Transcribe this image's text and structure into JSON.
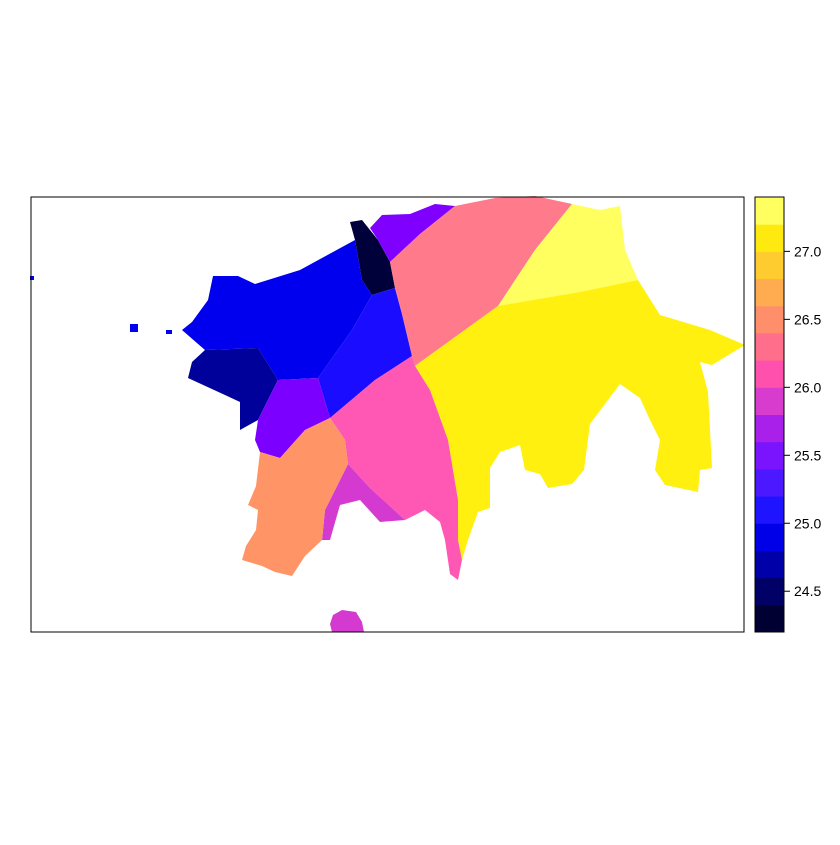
{
  "map": {
    "legend": {
      "min": 24.2,
      "max": 27.4,
      "bins": [
        {
          "from": 24.2,
          "to": 24.4,
          "color": "#000033"
        },
        {
          "from": 24.4,
          "to": 24.6,
          "color": "#000066"
        },
        {
          "from": 24.6,
          "to": 24.8,
          "color": "#0000a8"
        },
        {
          "from": 24.8,
          "to": 25.0,
          "color": "#0000e8"
        },
        {
          "from": 25.0,
          "to": 25.2,
          "color": "#1e14ff"
        },
        {
          "from": 25.2,
          "to": 25.4,
          "color": "#4c18ff"
        },
        {
          "from": 25.4,
          "to": 25.6,
          "color": "#7a14ff"
        },
        {
          "from": 25.6,
          "to": 25.8,
          "color": "#a820ea"
        },
        {
          "from": 25.8,
          "to": 26.0,
          "color": "#d83ccf"
        },
        {
          "from": 26.0,
          "to": 26.2,
          "color": "#ff50ad"
        },
        {
          "from": 26.2,
          "to": 26.4,
          "color": "#ff6e8a"
        },
        {
          "from": 26.4,
          "to": 26.6,
          "color": "#ff8e6a"
        },
        {
          "from": 26.6,
          "to": 26.8,
          "color": "#ffab50"
        },
        {
          "from": 26.8,
          "to": 27.0,
          "color": "#ffcc30"
        },
        {
          "from": 27.0,
          "to": 27.2,
          "color": "#ffea10"
        },
        {
          "from": 27.2,
          "to": 27.4,
          "color": "#ffff60"
        }
      ],
      "ticks": [
        {
          "value": 24.5,
          "label": "24.5"
        },
        {
          "value": 25.0,
          "label": "25.0"
        },
        {
          "value": 25.5,
          "label": "25.5"
        },
        {
          "value": 26.0,
          "label": "26.0"
        },
        {
          "value": 26.5,
          "label": "26.5"
        },
        {
          "value": 27.0,
          "label": "27.0"
        }
      ]
    },
    "regions": [
      {
        "id": "darkest-north",
        "value": 24.3,
        "color": "#00003a"
      },
      {
        "id": "navy-southwest",
        "value": 24.7,
        "color": "#00009a"
      },
      {
        "id": "blue-west",
        "value": 24.9,
        "color": "#0000ee"
      },
      {
        "id": "blue-central",
        "value": 25.1,
        "color": "#1a0cff"
      },
      {
        "id": "violet-north",
        "value": 25.5,
        "color": "#8000ff"
      },
      {
        "id": "violet-southwest",
        "value": 25.5,
        "color": "#7c00ff"
      },
      {
        "id": "magenta-south",
        "value": 25.9,
        "color": "#d43ad0"
      },
      {
        "id": "pink-central",
        "value": 26.1,
        "color": "#ff58b4"
      },
      {
        "id": "salmon-north",
        "value": 26.3,
        "color": "#ff7a8a"
      },
      {
        "id": "orange-southwest",
        "value": 26.5,
        "color": "#ff9566"
      },
      {
        "id": "yellow-east",
        "value": 27.1,
        "color": "#fff010"
      },
      {
        "id": "lightyellow-northeast",
        "value": 27.3,
        "color": "#ffff60"
      }
    ]
  }
}
